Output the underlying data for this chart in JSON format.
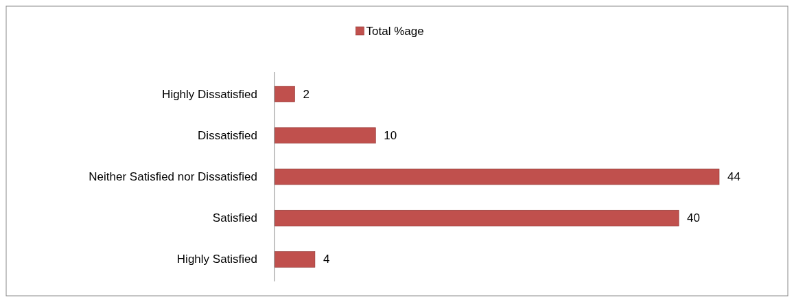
{
  "chart_data": {
    "type": "bar",
    "orientation": "horizontal",
    "categories": [
      "Highly Dissatisfied",
      "Dissatisfied",
      "Neither Satisfied nor Dissatisfied",
      "Satisfied",
      "Highly Satisfied"
    ],
    "series": [
      {
        "name": "Total %age",
        "color": "#c0504d",
        "values": [
          2,
          10,
          44,
          40,
          4
        ]
      }
    ],
    "data_labels": true,
    "legend": "top"
  }
}
